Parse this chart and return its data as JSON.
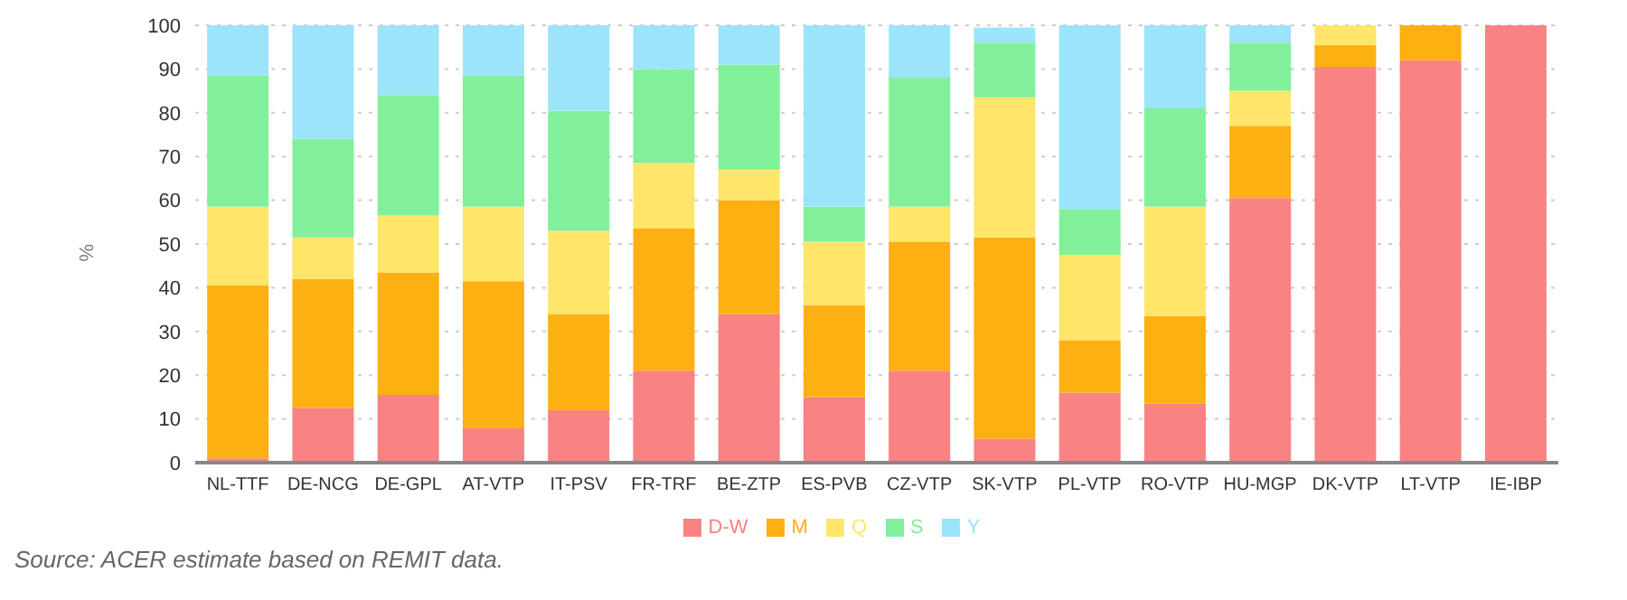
{
  "chart_data": {
    "type": "bar",
    "stacked": true,
    "ylabel": "%",
    "categories": [
      "NL-TTF",
      "DE-NCG",
      "DE-GPL",
      "AT-VTP",
      "IT-PSV",
      "FR-TRF",
      "BE-ZTP",
      "ES-PVB",
      "CZ-VTP",
      "SK-VTP",
      "PL-VTP",
      "RO-VTP",
      "HU-MGP",
      "DK-VTP",
      "LT-VTP",
      "IE-IBP"
    ],
    "series": [
      {
        "name": "D-W",
        "color": "#f98282",
        "values": [
          1,
          12.5,
          15.5,
          8,
          12,
          21,
          34,
          15,
          21,
          5.5,
          16,
          13.5,
          60.5,
          90.5,
          92,
          100
        ]
      },
      {
        "name": "M",
        "color": "#fdb012",
        "values": [
          39.5,
          29.5,
          28,
          33.5,
          22,
          32.5,
          26,
          21,
          29.5,
          46,
          12,
          20,
          16.5,
          5,
          8,
          0
        ]
      },
      {
        "name": "Q",
        "color": "#fde66a",
        "values": [
          18,
          9.5,
          13,
          17,
          19,
          15,
          7,
          14.5,
          8,
          32,
          19.5,
          25,
          8,
          4.5,
          0,
          0
        ]
      },
      {
        "name": "S",
        "color": "#82f09a",
        "values": [
          30,
          22.5,
          27.5,
          30,
          27.5,
          21.5,
          24,
          8,
          29.5,
          12.5,
          10.5,
          22.5,
          11,
          0,
          0,
          0
        ]
      },
      {
        "name": "Y",
        "color": "#9ce4fa",
        "values": [
          11.5,
          26,
          16,
          11.5,
          19.5,
          10,
          9,
          41.5,
          12,
          3.5,
          42,
          19,
          4,
          0,
          0,
          0
        ]
      }
    ],
    "ylim": [
      0,
      100
    ],
    "yticks": [
      0,
      10,
      20,
      30,
      40,
      50,
      60,
      70,
      80,
      90,
      100
    ],
    "grid": "y",
    "legend": "bottom",
    "annotations": [
      "Source: ACER estimate based on REMIT data."
    ]
  }
}
